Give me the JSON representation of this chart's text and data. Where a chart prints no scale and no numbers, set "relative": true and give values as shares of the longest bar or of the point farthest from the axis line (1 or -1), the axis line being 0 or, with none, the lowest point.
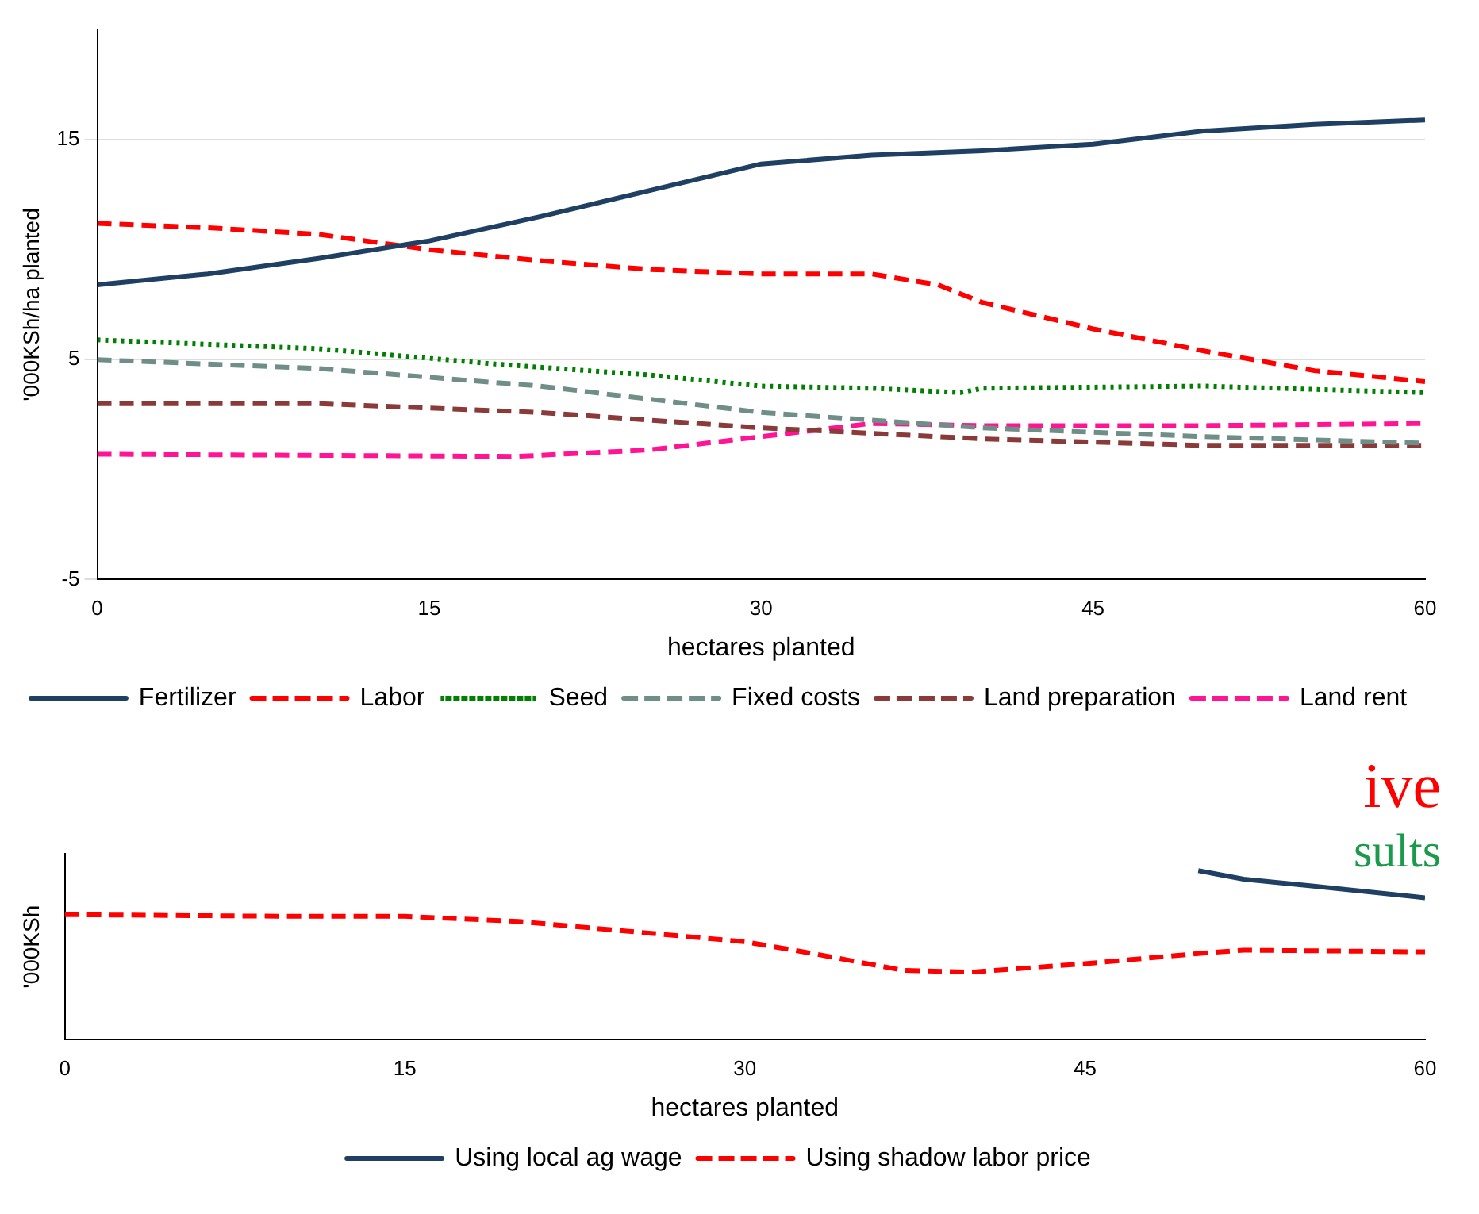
{
  "chart_data": [
    {
      "type": "line",
      "xlabel": "hectares planted",
      "ylabel": "'000KSh/ha planted",
      "xlim": [
        0,
        60
      ],
      "xticks": [
        0,
        15,
        30,
        45,
        60
      ],
      "ylim": [
        -5,
        20
      ],
      "yticks": [
        -5,
        5,
        15
      ],
      "grid": "y",
      "legend": "bottom",
      "series": [
        {
          "name": "Fertilizer",
          "color": "#1f3f63",
          "line_style": "solid",
          "x": [
            0,
            5,
            10,
            15,
            20,
            25,
            30,
            35,
            40,
            45,
            50,
            55,
            60
          ],
          "values": [
            8.4,
            8.9,
            9.6,
            10.4,
            11.5,
            12.7,
            13.9,
            14.3,
            14.5,
            14.8,
            15.4,
            15.7,
            15.9
          ]
        },
        {
          "name": "Labor",
          "color": "#ff0000",
          "line_style": "dashed",
          "x": [
            0,
            5,
            10,
            15,
            20,
            25,
            30,
            35,
            38,
            40,
            45,
            50,
            55,
            60
          ],
          "values": [
            11.2,
            11,
            10.7,
            10,
            9.5,
            9.1,
            8.9,
            8.9,
            8.4,
            7.6,
            6.4,
            5.4,
            4.5,
            4
          ]
        },
        {
          "name": "Seed",
          "color": "#008000",
          "line_style": "dotted",
          "x": [
            0,
            10,
            18,
            25,
            30,
            35,
            39,
            40,
            50,
            60
          ],
          "values": [
            5.9,
            5.5,
            4.8,
            4.3,
            3.8,
            3.7,
            3.5,
            3.7,
            3.8,
            3.5
          ]
        },
        {
          "name": "Fixed costs",
          "color": "#708e88",
          "line_style": "dashed",
          "x": [
            0,
            10,
            20,
            30,
            40,
            50,
            60
          ],
          "values": [
            5,
            4.6,
            3.8,
            2.6,
            1.9,
            1.5,
            1.2
          ]
        },
        {
          "name": "Land preparation",
          "color": "#8b3a3a",
          "line_style": "dashed",
          "x": [
            0,
            10,
            20,
            30,
            40,
            50,
            60
          ],
          "values": [
            3,
            3,
            2.6,
            1.9,
            1.4,
            1.1,
            1.1
          ]
        },
        {
          "name": "Land rent",
          "color": "#ff1493",
          "line_style": "dashed",
          "x": [
            0,
            19,
            25,
            30,
            35,
            40,
            50,
            60
          ],
          "values": [
            0.7,
            0.6,
            0.9,
            1.5,
            2.1,
            2,
            2,
            2.1
          ]
        }
      ]
    },
    {
      "type": "line",
      "relative": true,
      "xlabel": "hectares planted",
      "ylabel": "'000KSh",
      "xlim": [
        0,
        60
      ],
      "xticks": [
        0,
        15,
        30,
        45,
        60
      ],
      "legend": "bottom",
      "annotations": [
        "ive",
        "sults"
      ],
      "series": [
        {
          "name": "Using local ag wage",
          "color": "#1f3f63",
          "line_style": "solid",
          "x": [
            50,
            52,
            55,
            60
          ],
          "values": [
            1,
            0.95,
            0.91,
            0.84
          ]
        },
        {
          "name": "Using shadow labor price",
          "color": "#ff0000",
          "line_style": "dashed",
          "x": [
            0,
            10,
            15,
            20,
            25,
            30,
            33,
            37,
            40,
            45,
            50,
            52,
            60
          ],
          "values": [
            0.74,
            0.73,
            0.73,
            0.7,
            0.64,
            0.58,
            0.51,
            0.41,
            0.4,
            0.45,
            0.51,
            0.53,
            0.52
          ]
        }
      ]
    }
  ]
}
